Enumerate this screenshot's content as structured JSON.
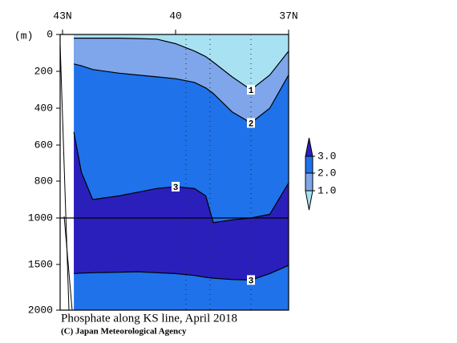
{
  "chart_data": {
    "type": "contour",
    "title": "Phosphate along KS line, April 2018",
    "credit": "(C) Japan Meteorological Agency",
    "y_label": "(m)",
    "x": [
      42.7,
      42.5,
      42.2,
      41.5,
      41,
      40.5,
      40,
      39.5,
      39.2,
      39,
      38.5,
      38,
      37.5,
      37
    ],
    "xlim": [
      43,
      37
    ],
    "xticks": [
      {
        "value": 43,
        "label": "43N"
      },
      40,
      {
        "value": 37,
        "label": "37N"
      }
    ],
    "ylim": [
      0,
      2000
    ],
    "yticks": [
      0,
      200,
      400,
      600,
      800,
      1000,
      1500,
      2000
    ],
    "contours": [
      {
        "level": 1,
        "values": [
          20,
          20,
          20,
          20,
          22,
          25,
          50,
          90,
          120,
          150,
          230,
          300,
          220,
          90
        ]
      },
      {
        "level": 2,
        "values": [
          160,
          170,
          190,
          210,
          220,
          230,
          240,
          260,
          290,
          320,
          420,
          480,
          400,
          220
        ]
      },
      {
        "level": 3,
        "values": [
          530,
          750,
          900,
          880,
          860,
          840,
          830,
          840,
          880,
          1050,
          1020,
          1000,
          980,
          810
        ]
      },
      {
        "level": 3,
        "values": [
          1600,
          1595,
          1590,
          1585,
          1580,
          1590,
          1600,
          1620,
          1640,
          1650,
          1665,
          1670,
          1600,
          1510
        ]
      }
    ],
    "colorbar": {
      "ticks": [
        {
          "value": 3,
          "label": "3.0"
        },
        {
          "value": 2,
          "label": "2.0"
        },
        {
          "value": 1,
          "label": "1.0"
        }
      ],
      "colors": [
        "#a8e2f2",
        "#7fa6ea",
        "#1f72ea",
        "#2b1fbc"
      ]
    }
  }
}
